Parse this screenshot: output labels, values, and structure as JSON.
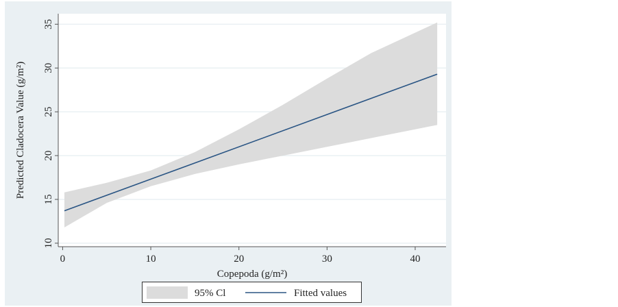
{
  "chart_data": {
    "type": "line",
    "title": "",
    "xlabel": "Copepoda (g/m²)",
    "ylabel": "Predicted Cladocera Value (g/m²)",
    "xlim": [
      -0.5,
      43.5
    ],
    "ylim": [
      9.6,
      36.2
    ],
    "xticks": [
      0,
      10,
      20,
      30,
      40
    ],
    "yticks": [
      10,
      15,
      20,
      25,
      30,
      35
    ],
    "grid": true,
    "legend_position": "bottom",
    "legend": [
      "95% Cl",
      "Fitted values"
    ],
    "colors": {
      "ci": "#dcdcdc",
      "fit": "#2a5584",
      "background": "#eaf0f3"
    },
    "fitted": {
      "x": [
        0.2,
        42.5
      ],
      "y": [
        13.7,
        29.3
      ]
    },
    "ci": {
      "x": [
        0.2,
        5,
        10,
        15,
        20,
        25,
        30,
        35,
        42.5
      ],
      "lower": [
        11.8,
        14.6,
        16.5,
        17.9,
        19.0,
        20.0,
        21.0,
        22.0,
        23.5
      ],
      "upper": [
        15.8,
        16.9,
        18.3,
        20.4,
        23.0,
        25.8,
        28.8,
        31.7,
        35.2
      ]
    }
  }
}
